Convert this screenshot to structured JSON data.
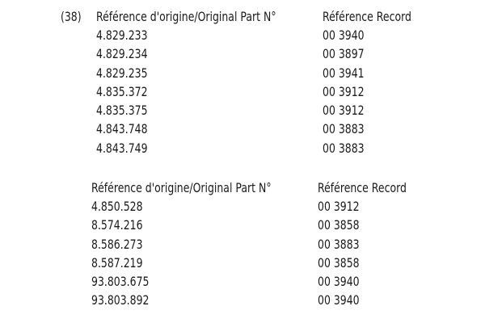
{
  "section_number": "(38)",
  "tables": [
    {
      "headers": [
        "Référence d'origine/Original Part N°",
        "Référence Record"
      ],
      "rows": [
        [
          "4.829.233",
          "00 3940"
        ],
        [
          "4.829.234",
          "00 3897"
        ],
        [
          "4.829.235",
          "00 3941"
        ],
        [
          "4.835.372",
          "00 3912"
        ],
        [
          "4.835.375",
          "00 3912"
        ],
        [
          "4.843.748",
          "00 3883"
        ],
        [
          "4.843.749",
          "00 3883"
        ]
      ]
    },
    {
      "headers": [
        "Référence d'origine/Original Part N°",
        "Référence Record"
      ],
      "rows": [
        [
          "4.850.528",
          "00 3912"
        ],
        [
          "8.574.216",
          "00 3858"
        ],
        [
          "8.586.273",
          "00 3883"
        ],
        [
          "8.587.219",
          "00 3858"
        ],
        [
          "93.803.675",
          "00 3940"
        ],
        [
          "93.803.892",
          "00 3940"
        ]
      ]
    }
  ]
}
